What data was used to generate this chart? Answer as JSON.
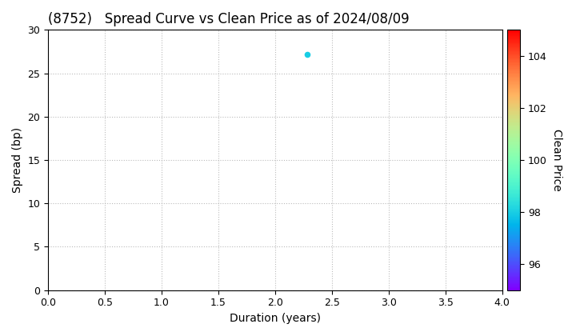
{
  "title": "(8752)   Spread Curve vs Clean Price as of 2024/08/09",
  "xlabel": "Duration (years)",
  "ylabel": "Spread (bp)",
  "colorbar_label": "Clean Price",
  "xlim": [
    0.0,
    4.0
  ],
  "ylim": [
    0,
    30
  ],
  "xticks": [
    0.0,
    0.5,
    1.0,
    1.5,
    2.0,
    2.5,
    3.0,
    3.5,
    4.0
  ],
  "yticks": [
    0,
    5,
    10,
    15,
    20,
    25,
    30
  ],
  "colorbar_ticks": [
    96,
    98,
    100,
    102,
    104
  ],
  "colorbar_vmin": 95,
  "colorbar_vmax": 105,
  "scatter_x": [
    2.28
  ],
  "scatter_y": [
    27.2
  ],
  "scatter_color": [
    98.0
  ],
  "scatter_size": 20,
  "grid_color": "#bbbbbb",
  "background_color": "#ffffff",
  "title_fontsize": 12,
  "label_fontsize": 10,
  "figsize": [
    7.2,
    4.2
  ],
  "dpi": 100
}
